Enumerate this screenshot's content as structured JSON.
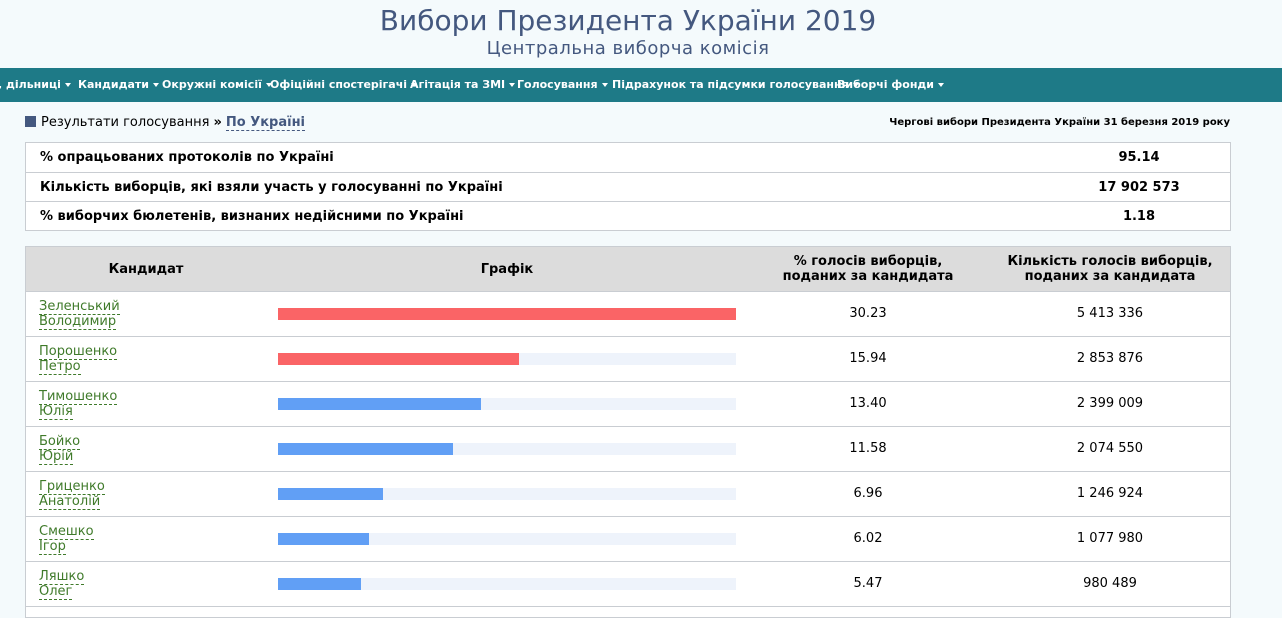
{
  "header": {
    "title": "Вибори Президента України 2019",
    "subtitle": "Центральна виборча комісія"
  },
  "nav": [
    {
      "label": ", дільниці"
    },
    {
      "label": "Кандидати"
    },
    {
      "label": "Окружні комісії"
    },
    {
      "label": "Офіційні спостерігачі"
    },
    {
      "label": "Агітація та ЗМІ"
    },
    {
      "label": "Голосування"
    },
    {
      "label": "Підрахунок та підсумки голосування"
    },
    {
      "label": "Виборчі фонди"
    }
  ],
  "breadcrumb": {
    "section": "Результати голосування",
    "separator": "»",
    "current": "По Україні"
  },
  "election_name": "Чергові вибори Президента України 31 березня 2019 року",
  "stats": [
    {
      "label": "% опрацьованих протоколів по Україні",
      "value": "95.14"
    },
    {
      "label": "Кількість виборців, які взяли участь у голосуванні по Україні",
      "value": "17 902 573"
    },
    {
      "label": "% виборчих бюлетенів, визнаних недійсними по Україні",
      "value": "1.18"
    }
  ],
  "results_table": {
    "headers": {
      "candidate": "Кандидат",
      "chart": "Графік",
      "percent": "% голосів виборців, поданих за кандидата",
      "votes": "Кількість голосів виборців, поданих за кандидата"
    },
    "bar_colors": {
      "leader": "#fa6466",
      "other": "#619ff5"
    },
    "rows": [
      {
        "surname": "Зеленський",
        "given": "Володимир",
        "percent": "30.23",
        "votes": "5 413 336",
        "bar_fraction": 1.0,
        "leader": true
      },
      {
        "surname": "Порошенко",
        "given": "Петро",
        "percent": "15.94",
        "votes": "2 853 876",
        "bar_fraction": 0.527,
        "leader": true
      },
      {
        "surname": "Тимошенко",
        "given": "Юлія",
        "percent": "13.40",
        "votes": "2 399 009",
        "bar_fraction": 0.443,
        "leader": false
      },
      {
        "surname": "Бойко",
        "given": "Юрій",
        "percent": "11.58",
        "votes": "2 074 550",
        "bar_fraction": 0.383,
        "leader": false
      },
      {
        "surname": "Гриценко",
        "given": "Анатолій",
        "percent": "6.96",
        "votes": "1 246 924",
        "bar_fraction": 0.23,
        "leader": false
      },
      {
        "surname": "Смешко",
        "given": "Ігор",
        "percent": "6.02",
        "votes": "1 077 980",
        "bar_fraction": 0.199,
        "leader": false
      },
      {
        "surname": "Ляшко",
        "given": "Олег",
        "percent": "5.47",
        "votes": "980 489",
        "bar_fraction": 0.181,
        "leader": false
      }
    ]
  }
}
